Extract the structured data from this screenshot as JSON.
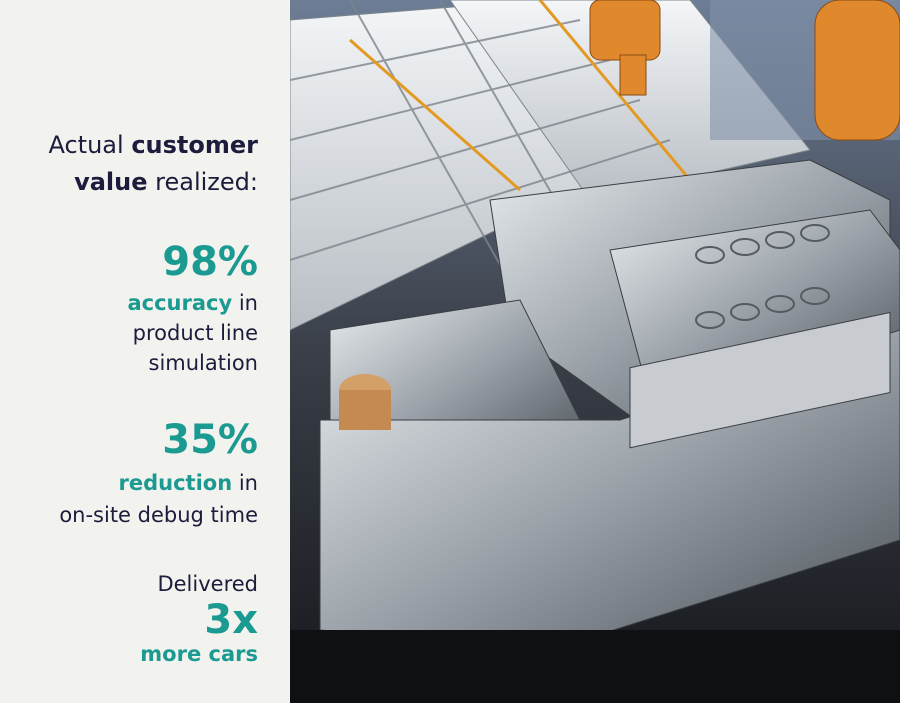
{
  "heading": {
    "line1": [
      "Actual",
      "customer"
    ],
    "line2": [
      "value",
      "realized:"
    ]
  },
  "stats": [
    {
      "value": "98%",
      "emphasis": "accuracy",
      "lines": [
        "in",
        "product line",
        "simulation"
      ]
    },
    {
      "value": "35%",
      "emphasis": "reduction",
      "lines": [
        "in",
        "on-site debug time"
      ]
    },
    {
      "intro": "Delivered",
      "value": "3x",
      "emphasis": "more cars"
    }
  ]
}
